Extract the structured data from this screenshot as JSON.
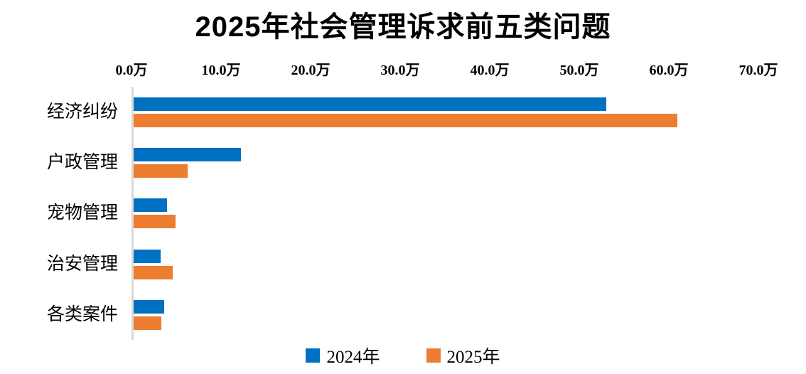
{
  "title": "2025年社会管理诉求前五类问题",
  "colors": {
    "series_2024": "#0070C0",
    "series_2025": "#ED7D31",
    "axis_line": "#D9D9D9",
    "text": "#000000",
    "background": "#FFFFFF"
  },
  "legend": {
    "items": [
      {
        "label": "2024年",
        "color": "#0070C0",
        "swatch_icon": "square-swatch-icon"
      },
      {
        "label": "2025年",
        "color": "#ED7D31",
        "swatch_icon": "square-swatch-icon"
      }
    ],
    "position": "bottom"
  },
  "chart_data": {
    "type": "bar",
    "orientation": "horizontal",
    "title": "2025年社会管理诉求前五类问题",
    "unit": "万",
    "categories": [
      "经济纠纷",
      "户政管理",
      "宠物管理",
      "治安管理",
      "各类案件"
    ],
    "series": [
      {
        "name": "2024年",
        "color": "#0070C0",
        "values": [
          52.8,
          12.0,
          3.7,
          3.0,
          3.4
        ]
      },
      {
        "name": "2025年",
        "color": "#ED7D31",
        "values": [
          60.7,
          6.0,
          4.7,
          4.4,
          3.1
        ]
      }
    ],
    "x_axis": {
      "position": "top",
      "min": 0,
      "max": 70,
      "tick_labels": [
        "0.0万",
        "10.0万",
        "20.0万",
        "30.0万",
        "40.0万",
        "50.0万",
        "60.0万",
        "70.0万"
      ]
    },
    "grid": false,
    "data_labels": false,
    "legend_position": "bottom"
  }
}
